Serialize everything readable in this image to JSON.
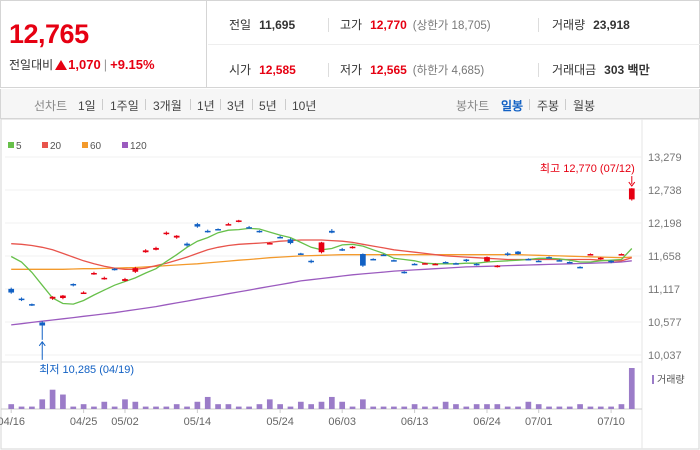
{
  "quote": {
    "price": "12,765",
    "change_label": "전일대비",
    "change_amount": "1,070",
    "change_separator": "|",
    "change_percent": "+9.15%"
  },
  "stats": {
    "prev_close": {
      "label": "전일",
      "value": "11,695"
    },
    "high": {
      "label": "고가",
      "value": "12,770",
      "sub": "(상한가 18,705)"
    },
    "volume": {
      "label": "거래량",
      "value": "23,918"
    },
    "open": {
      "label": "시가",
      "value": "12,585"
    },
    "low": {
      "label": "저가",
      "value": "12,565",
      "sub": "(하한가 4,685)"
    },
    "amount": {
      "label": "거래대금",
      "value": "303",
      "unit": "백만"
    }
  },
  "toolbar": {
    "line_chart_label": "선차트",
    "line_periods": [
      "1일",
      "1주일",
      "3개월",
      "1년",
      "3년",
      "5년",
      "10년"
    ],
    "candle_chart_label": "봉차트",
    "candle_periods": [
      "일봉",
      "주봉",
      "월봉"
    ],
    "active_candle_period": "일봉"
  },
  "colors": {
    "up": "#e60012",
    "down": "#1261c4",
    "ma5": "#67c04a",
    "ma20": "#e8544c",
    "ma60": "#f39a2c",
    "ma120": "#9b5bbf",
    "volume": "#9b7cc8"
  },
  "chart_data": {
    "type": "candlestick",
    "legend": [
      {
        "name": "5",
        "color": "#67c04a"
      },
      {
        "name": "20",
        "color": "#e8544c"
      },
      {
        "name": "60",
        "color": "#f39a2c"
      },
      {
        "name": "120",
        "color": "#9b5bbf"
      }
    ],
    "ylim": [
      10037,
      13279
    ],
    "y_ticks": [
      "13,279",
      "12,738",
      "12,198",
      "11,658",
      "11,117",
      "10,577",
      "10,037"
    ],
    "x_ticks": [
      {
        "label": "04/16",
        "i": 0
      },
      {
        "label": "04/25",
        "i": 7
      },
      {
        "label": "05/02",
        "i": 11
      },
      {
        "label": "05/14",
        "i": 18
      },
      {
        "label": "05/24",
        "i": 26
      },
      {
        "label": "06/03",
        "i": 32
      },
      {
        "label": "06/13",
        "i": 39
      },
      {
        "label": "06/24",
        "i": 46
      },
      {
        "label": "07/01",
        "i": 51
      },
      {
        "label": "07/10",
        "i": 58
      }
    ],
    "max_annotation": "최고 12,770 (07/12)",
    "max_index": 60,
    "max_value": 12770,
    "min_annotation": "최저 10,285 (04/19)",
    "min_index": 3,
    "min_value": 10285,
    "volume_label": "거래량",
    "candles": [
      {
        "o": 11120,
        "c": 11060,
        "h": 11140,
        "l": 11040,
        "v": 2
      },
      {
        "o": 10960,
        "c": 10940,
        "h": 10980,
        "l": 10920,
        "v": 1
      },
      {
        "o": 10870,
        "c": 10860,
        "h": 10880,
        "l": 10840,
        "v": 1
      },
      {
        "o": 10570,
        "c": 10520,
        "h": 10590,
        "l": 10285,
        "v": 4
      },
      {
        "o": 10960,
        "c": 10990,
        "h": 11000,
        "l": 10940,
        "v": 8
      },
      {
        "o": 10970,
        "c": 11010,
        "h": 11020,
        "l": 10950,
        "v": 6
      },
      {
        "o": 11200,
        "c": 11190,
        "h": 11210,
        "l": 11160,
        "v": 1
      },
      {
        "o": 11050,
        "c": 11060,
        "h": 11080,
        "l": 11040,
        "v": 2
      },
      {
        "o": 11370,
        "c": 11380,
        "h": 11400,
        "l": 11350,
        "v": 1
      },
      {
        "o": 11290,
        "c": 11300,
        "h": 11320,
        "l": 11270,
        "v": 3
      },
      {
        "o": 11450,
        "c": 11430,
        "h": 11460,
        "l": 11420,
        "v": 1
      },
      {
        "o": 11250,
        "c": 11280,
        "h": 11300,
        "l": 11240,
        "v": 4
      },
      {
        "o": 11400,
        "c": 11460,
        "h": 11480,
        "l": 11380,
        "v": 3
      },
      {
        "o": 11720,
        "c": 11750,
        "h": 11770,
        "l": 11710,
        "v": 1
      },
      {
        "o": 11760,
        "c": 11790,
        "h": 11810,
        "l": 11750,
        "v": 1
      },
      {
        "o": 12020,
        "c": 12040,
        "h": 12060,
        "l": 12000,
        "v": 1
      },
      {
        "o": 11960,
        "c": 11990,
        "h": 12000,
        "l": 11940,
        "v": 2
      },
      {
        "o": 11860,
        "c": 11830,
        "h": 11880,
        "l": 11810,
        "v": 1
      },
      {
        "o": 12180,
        "c": 12140,
        "h": 12200,
        "l": 12120,
        "v": 3
      },
      {
        "o": 12070,
        "c": 12060,
        "h": 12090,
        "l": 12040,
        "v": 5
      },
      {
        "o": 12100,
        "c": 12090,
        "h": 12110,
        "l": 12080,
        "v": 2
      },
      {
        "o": 12170,
        "c": 12180,
        "h": 12200,
        "l": 12160,
        "v": 2
      },
      {
        "o": 12220,
        "c": 12240,
        "h": 12250,
        "l": 12210,
        "v": 1
      },
      {
        "o": 12130,
        "c": 12120,
        "h": 12150,
        "l": 12110,
        "v": 1
      },
      {
        "o": 12070,
        "c": 12060,
        "h": 12080,
        "l": 12040,
        "v": 2
      },
      {
        "o": 11860,
        "c": 11870,
        "h": 11880,
        "l": 11850,
        "v": 4
      },
      {
        "o": 11970,
        "c": 11960,
        "h": 11990,
        "l": 11950,
        "v": 2
      },
      {
        "o": 11930,
        "c": 11870,
        "h": 11950,
        "l": 11850,
        "v": 1
      },
      {
        "o": 11700,
        "c": 11690,
        "h": 11710,
        "l": 11680,
        "v": 3
      },
      {
        "o": 11580,
        "c": 11560,
        "h": 11600,
        "l": 11540,
        "v": 2
      },
      {
        "o": 11720,
        "c": 11880,
        "h": 11890,
        "l": 11700,
        "v": 3
      },
      {
        "o": 12070,
        "c": 12040,
        "h": 12100,
        "l": 12030,
        "v": 5
      },
      {
        "o": 11770,
        "c": 11760,
        "h": 11790,
        "l": 11740,
        "v": 3
      },
      {
        "o": 11800,
        "c": 11810,
        "h": 11820,
        "l": 11780,
        "v": 1
      },
      {
        "o": 11690,
        "c": 11500,
        "h": 11700,
        "l": 11480,
        "v": 4
      },
      {
        "o": 11610,
        "c": 11600,
        "h": 11620,
        "l": 11590,
        "v": 1
      },
      {
        "o": 11680,
        "c": 11670,
        "h": 11690,
        "l": 11660,
        "v": 1
      },
      {
        "o": 11590,
        "c": 11580,
        "h": 11600,
        "l": 11570,
        "v": 1
      },
      {
        "o": 11400,
        "c": 11390,
        "h": 11410,
        "l": 11370,
        "v": 1
      },
      {
        "o": 11530,
        "c": 11520,
        "h": 11540,
        "l": 11510,
        "v": 2
      },
      {
        "o": 11530,
        "c": 11540,
        "h": 11550,
        "l": 11520,
        "v": 1
      },
      {
        "o": 11520,
        "c": 11530,
        "h": 11540,
        "l": 11510,
        "v": 1
      },
      {
        "o": 11560,
        "c": 11550,
        "h": 11570,
        "l": 11540,
        "v": 3
      },
      {
        "o": 11540,
        "c": 11530,
        "h": 11550,
        "l": 11520,
        "v": 2
      },
      {
        "o": 11600,
        "c": 11580,
        "h": 11610,
        "l": 11560,
        "v": 1
      },
      {
        "o": 11530,
        "c": 11520,
        "h": 11540,
        "l": 11500,
        "v": 2
      },
      {
        "o": 11570,
        "c": 11640,
        "h": 11650,
        "l": 11560,
        "v": 2
      },
      {
        "o": 11480,
        "c": 11500,
        "h": 11510,
        "l": 11470,
        "v": 2
      },
      {
        "o": 11700,
        "c": 11680,
        "h": 11720,
        "l": 11660,
        "v": 1
      },
      {
        "o": 11730,
        "c": 11690,
        "h": 11740,
        "l": 11680,
        "v": 1
      },
      {
        "o": 11610,
        "c": 11600,
        "h": 11620,
        "l": 11590,
        "v": 3
      },
      {
        "o": 11580,
        "c": 11570,
        "h": 11590,
        "l": 11560,
        "v": 2
      },
      {
        "o": 11640,
        "c": 11630,
        "h": 11650,
        "l": 11620,
        "v": 1
      },
      {
        "o": 11590,
        "c": 11580,
        "h": 11600,
        "l": 11570,
        "v": 1
      },
      {
        "o": 11560,
        "c": 11550,
        "h": 11570,
        "l": 11540,
        "v": 1
      },
      {
        "o": 11480,
        "c": 11470,
        "h": 11490,
        "l": 11460,
        "v": 2
      },
      {
        "o": 11680,
        "c": 11690,
        "h": 11700,
        "l": 11670,
        "v": 1
      },
      {
        "o": 11620,
        "c": 11630,
        "h": 11640,
        "l": 11600,
        "v": 1
      },
      {
        "o": 11580,
        "c": 11560,
        "h": 11590,
        "l": 11540,
        "v": 1
      },
      {
        "o": 11680,
        "c": 11690,
        "h": 11700,
        "l": 11670,
        "v": 2
      },
      {
        "o": 12585,
        "c": 12765,
        "h": 12770,
        "l": 12565,
        "v": 17
      }
    ],
    "ma5": [
      11650,
      11560,
      11390,
      11180,
      10970,
      10880,
      10870,
      10930,
      11020,
      11100,
      11180,
      11240,
      11300,
      11380,
      11450,
      11570,
      11680,
      11800,
      11900,
      11960,
      12040,
      12080,
      12090,
      12110,
      12100,
      12050,
      12000,
      11960,
      11880,
      11800,
      11760,
      11780,
      11840,
      11850,
      11820,
      11760,
      11700,
      11620,
      11600,
      11580,
      11540,
      11530,
      11530,
      11530,
      11540,
      11540,
      11560,
      11570,
      11580,
      11590,
      11600,
      11620,
      11620,
      11610,
      11590,
      11560,
      11560,
      11580,
      11590,
      11600,
      11780
    ],
    "ma20": [
      11860,
      11850,
      11830,
      11800,
      11760,
      11700,
      11640,
      11580,
      11530,
      11490,
      11460,
      11440,
      11440,
      11460,
      11500,
      11540,
      11590,
      11640,
      11700,
      11760,
      11800,
      11830,
      11850,
      11860,
      11870,
      11880,
      11900,
      11910,
      11920,
      11920,
      11920,
      11910,
      11900,
      11880,
      11850,
      11820,
      11790,
      11760,
      11740,
      11720,
      11700,
      11680,
      11660,
      11650,
      11640,
      11630,
      11620,
      11610,
      11600,
      11600,
      11600,
      11600,
      11600,
      11600,
      11600,
      11600,
      11600,
      11590,
      11580,
      11580,
      11630
    ],
    "ma60": [
      11440,
      11440,
      11440,
      11440,
      11440,
      11440,
      11445,
      11450,
      11450,
      11455,
      11460,
      11465,
      11470,
      11480,
      11490,
      11500,
      11510,
      11520,
      11530,
      11545,
      11560,
      11575,
      11590,
      11600,
      11615,
      11630,
      11640,
      11650,
      11660,
      11665,
      11670,
      11675,
      11680,
      11680,
      11680,
      11680,
      11680,
      11680,
      11680,
      11680,
      11680,
      11680,
      11680,
      11680,
      11680,
      11680,
      11680,
      11680,
      11680,
      11680,
      11675,
      11670,
      11665,
      11660,
      11655,
      11650,
      11645,
      11640,
      11635,
      11630,
      11640
    ],
    "ma120": [
      10530,
      10550,
      10570,
      10590,
      10610,
      10630,
      10650,
      10670,
      10690,
      10710,
      10730,
      10755,
      10780,
      10805,
      10830,
      10860,
      10890,
      10920,
      10950,
      10980,
      11010,
      11040,
      11070,
      11100,
      11130,
      11160,
      11190,
      11220,
      11250,
      11270,
      11290,
      11310,
      11330,
      11350,
      11365,
      11380,
      11395,
      11410,
      11420,
      11430,
      11440,
      11450,
      11460,
      11470,
      11480,
      11485,
      11490,
      11495,
      11500,
      11505,
      11510,
      11515,
      11520,
      11525,
      11530,
      11535,
      11540,
      11545,
      11550,
      11560,
      11580
    ]
  }
}
